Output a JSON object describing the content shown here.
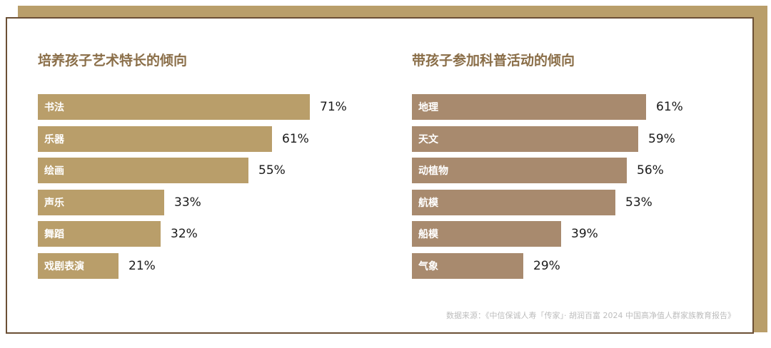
{
  "colors": {
    "left_bar": "#B99E6A",
    "right_bar": "#A88A6E",
    "title": "#8A6E48",
    "frame": "#6B4F35"
  },
  "chart_data": [
    {
      "type": "bar",
      "orientation": "horizontal",
      "title": "培养孩子艺术特长的倾向",
      "categories": [
        "书法",
        "乐器",
        "绘画",
        "声乐",
        "舞蹈",
        "戏剧表演"
      ],
      "values": [
        71,
        61,
        55,
        33,
        32,
        21
      ],
      "value_labels": [
        "71%",
        "61%",
        "55%",
        "33%",
        "32%",
        "21%"
      ],
      "unit": "%",
      "color": "#B99E6A"
    },
    {
      "type": "bar",
      "orientation": "horizontal",
      "title": "带孩子参加科普活动的倾向",
      "categories": [
        "地理",
        "天文",
        "动植物",
        "航模",
        "船模",
        "气象"
      ],
      "values": [
        61,
        59,
        56,
        53,
        39,
        29
      ],
      "value_labels": [
        "61%",
        "59%",
        "56%",
        "53%",
        "39%",
        "29%"
      ],
      "unit": "%",
      "color": "#A88A6E"
    }
  ],
  "source": "数据来源：《中信保诚人寿「传家」· 胡润百富 2024 中国高净值人群家族教育报告》"
}
